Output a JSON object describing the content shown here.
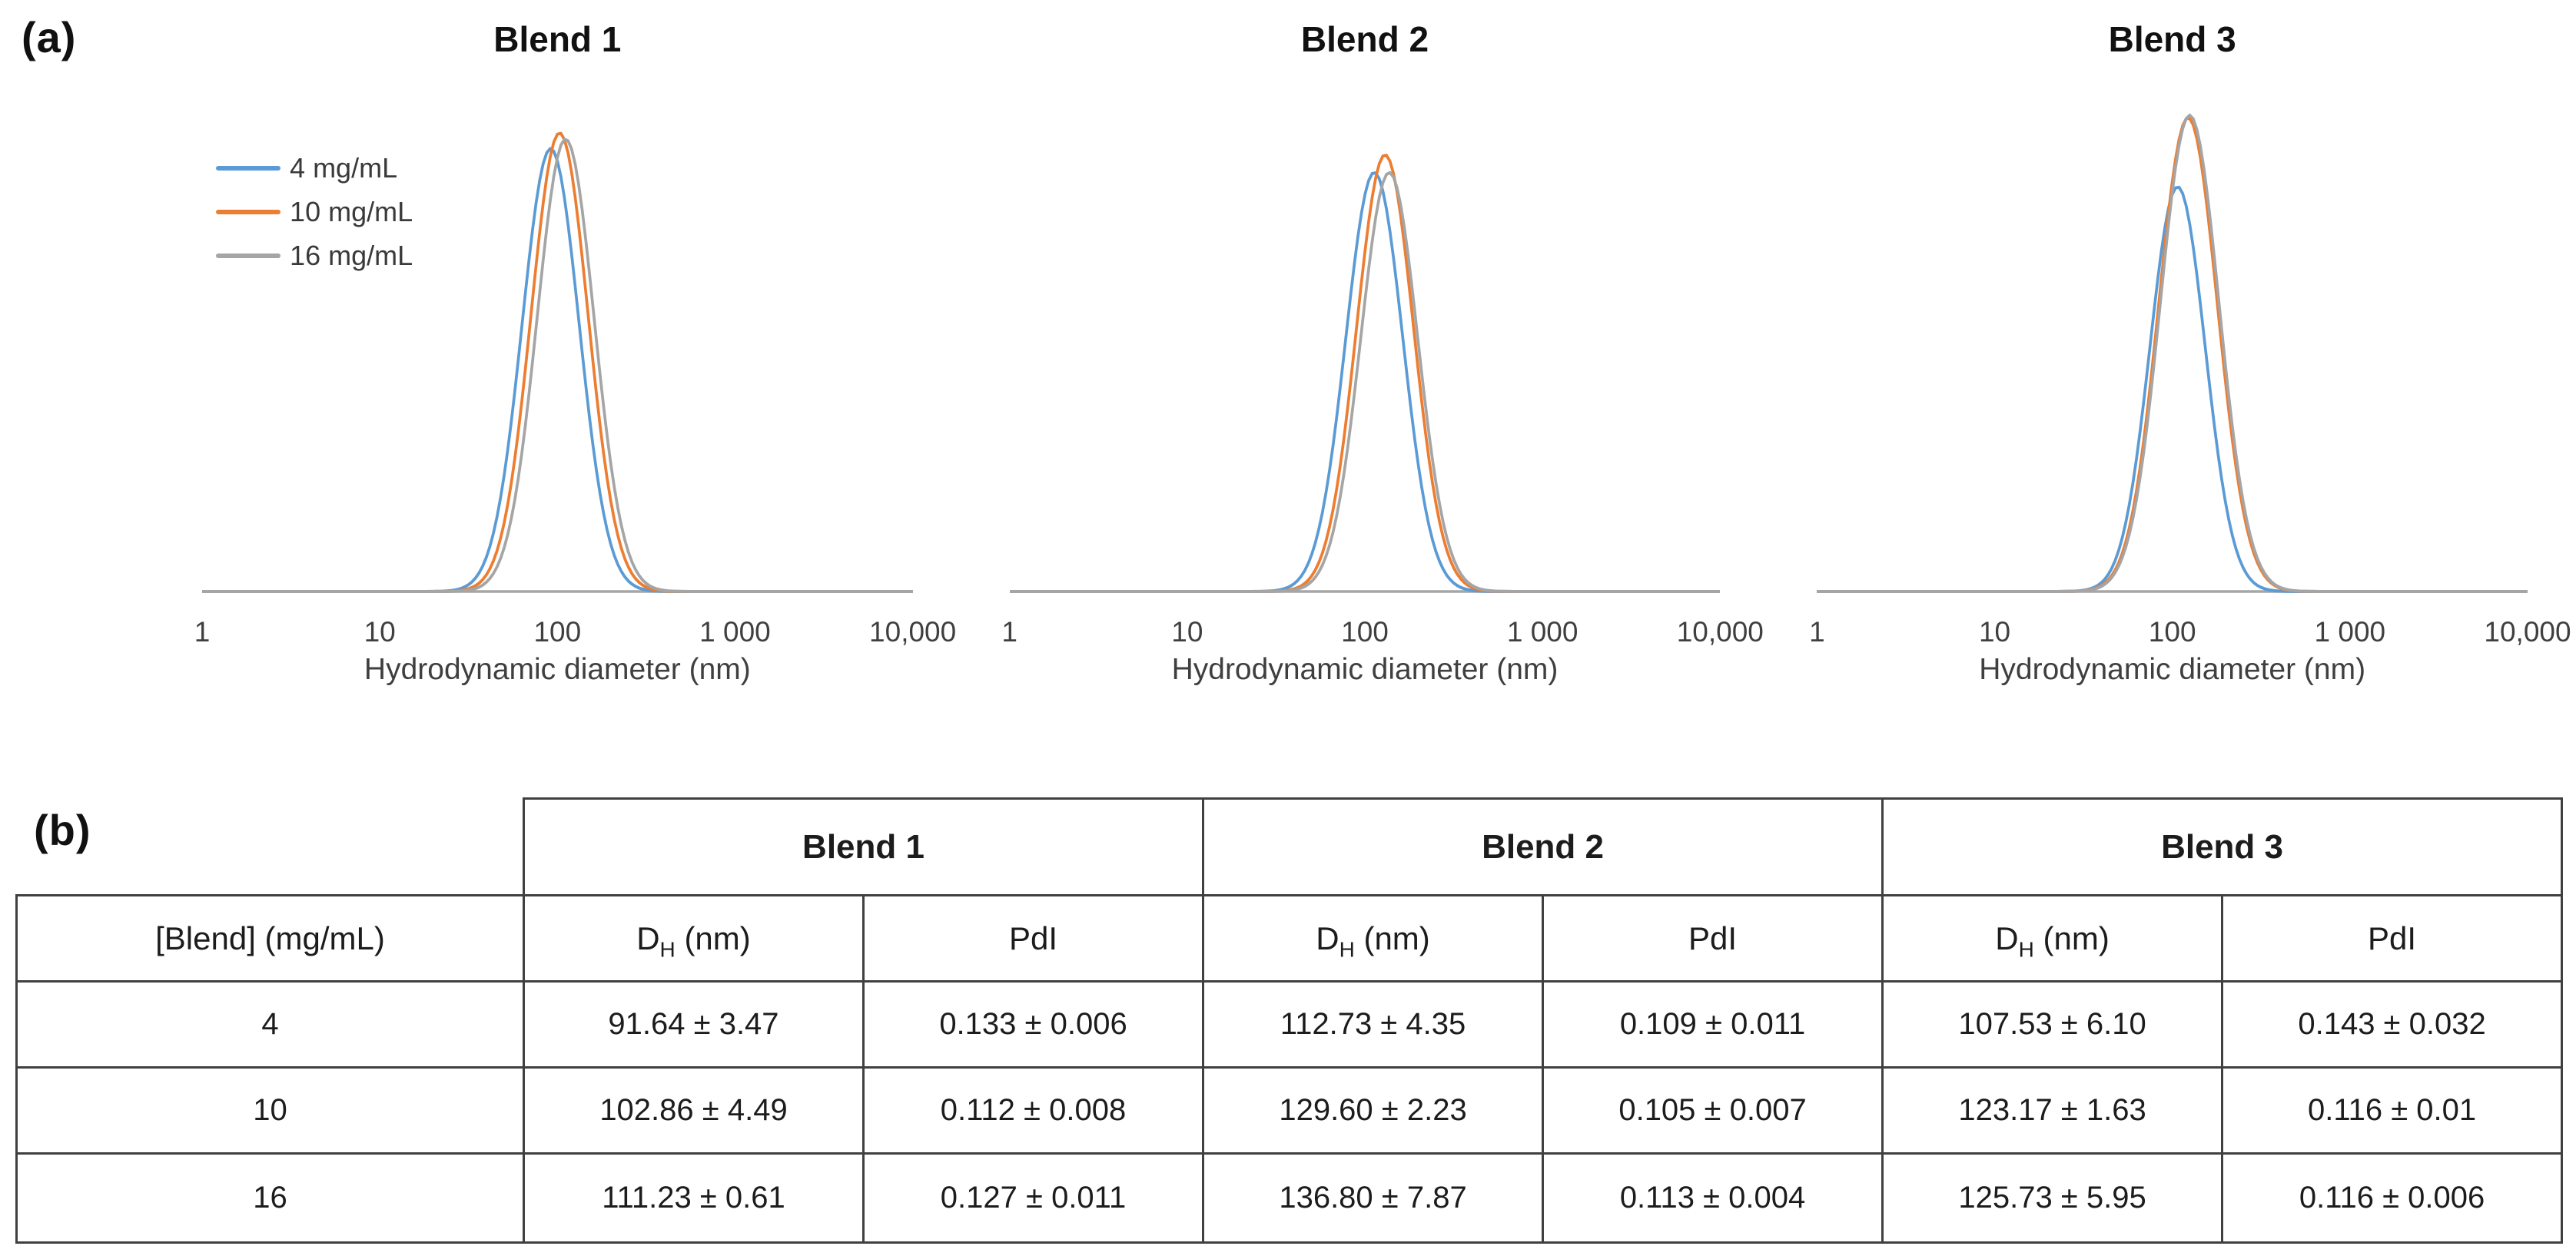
{
  "figure": {
    "panel_a_label": "(a)",
    "panel_b_label": "(b)"
  },
  "chart_data": [
    {
      "type": "line",
      "title": "Blend 1",
      "xlabel": "Hydrodynamic diameter (nm)",
      "ylabel": "",
      "x_scale": "log10",
      "x_range": [
        1,
        10000
      ],
      "x_ticks": [
        "1",
        "10",
        "100",
        "1 000",
        "10,000"
      ],
      "grid": false,
      "axis_color": "#A6A6A6",
      "legend_position": "top-left",
      "series": [
        {
          "name": "4 mg/mL",
          "color": "#5B9BD5",
          "peak_nm": 91.64,
          "rel_height": 0.93,
          "log_sigma": 0.16
        },
        {
          "name": "10 mg/mL",
          "color": "#ED7D31",
          "peak_nm": 102.86,
          "rel_height": 0.963,
          "log_sigma": 0.16
        },
        {
          "name": "16 mg/mL",
          "color": "#A5A5A5",
          "peak_nm": 111.23,
          "rel_height": 0.95,
          "log_sigma": 0.16
        }
      ]
    },
    {
      "type": "line",
      "title": "Blend 2",
      "xlabel": "Hydrodynamic diameter (nm)",
      "ylabel": "",
      "x_scale": "log10",
      "x_range": [
        1,
        10000
      ],
      "x_ticks": [
        "1",
        "10",
        "100",
        "1 000",
        "10,000"
      ],
      "grid": false,
      "axis_color": "#A6A6A6",
      "legend_position": "none",
      "series": [
        {
          "name": "4 mg/mL",
          "color": "#5B9BD5",
          "peak_nm": 112.73,
          "rel_height": 0.88,
          "log_sigma": 0.16
        },
        {
          "name": "10 mg/mL",
          "color": "#ED7D31",
          "peak_nm": 129.6,
          "rel_height": 0.917,
          "log_sigma": 0.16
        },
        {
          "name": "16 mg/mL",
          "color": "#A5A5A5",
          "peak_nm": 136.8,
          "rel_height": 0.88,
          "log_sigma": 0.16
        }
      ]
    },
    {
      "type": "line",
      "title": "Blend 3",
      "xlabel": "Hydrodynamic diameter (nm)",
      "ylabel": "",
      "x_scale": "log10",
      "x_range": [
        1,
        10000
      ],
      "x_ticks": [
        "1",
        "10",
        "100",
        "1 000",
        "10,000"
      ],
      "grid": false,
      "axis_color": "#A6A6A6",
      "legend_position": "none",
      "series": [
        {
          "name": "4 mg/mL",
          "color": "#5B9BD5",
          "peak_nm": 107.53,
          "rel_height": 0.85,
          "log_sigma": 0.155
        },
        {
          "name": "10 mg/mL",
          "color": "#ED7D31",
          "peak_nm": 123.17,
          "rel_height": 0.995,
          "log_sigma": 0.165
        },
        {
          "name": "16 mg/mL",
          "color": "#A5A5A5",
          "peak_nm": 125.73,
          "rel_height": 1.0,
          "log_sigma": 0.165
        }
      ]
    }
  ],
  "table": {
    "row_header_label": "[Blend] (mg/mL)",
    "group_headers": [
      "Blend 1",
      "Blend 2",
      "Blend 3"
    ],
    "dh_header": {
      "prefix": "D",
      "sub": "H",
      "suffix": " (nm)"
    },
    "pdi_header": "PdI",
    "rows": [
      {
        "conc": "4",
        "cells": [
          "91.64 ± 3.47",
          "0.133 ± 0.006",
          "112.73 ± 4.35",
          "0.109 ± 0.011",
          "107.53 ± 6.10",
          "0.143 ± 0.032"
        ]
      },
      {
        "conc": "10",
        "cells": [
          "102.86 ± 4.49",
          "0.112 ± 0.008",
          "129.60 ± 2.23",
          "0.105 ± 0.007",
          "123.17 ± 1.63",
          "0.116 ± 0.01"
        ]
      },
      {
        "conc": "16",
        "cells": [
          "111.23 ± 0.61",
          "0.127 ± 0.011",
          "136.80 ± 7.87",
          "0.113 ± 0.004",
          "125.73 ± 5.95",
          "0.116 ± 0.006"
        ]
      }
    ]
  }
}
